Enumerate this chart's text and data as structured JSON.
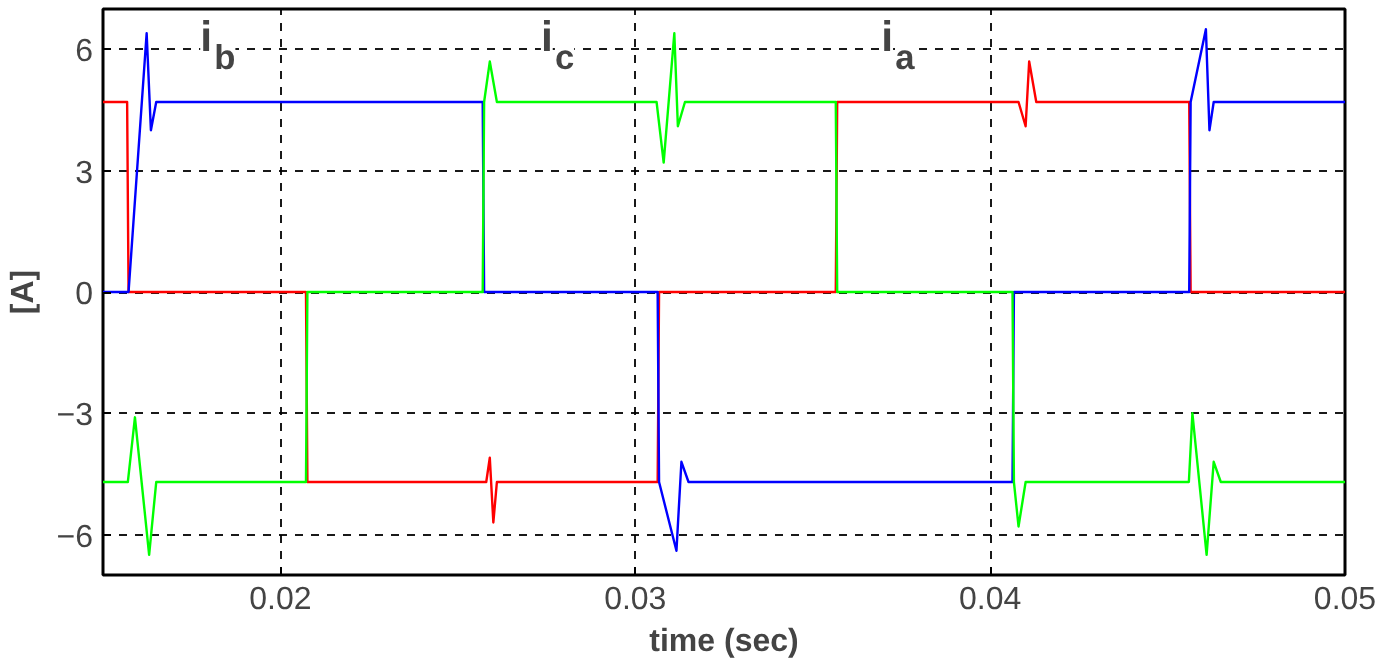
{
  "chart_data": {
    "type": "line",
    "xlabel": "time (sec)",
    "ylabel": "[A]",
    "xlim": [
      0.015,
      0.05
    ],
    "xticks": [
      0.02,
      0.03,
      0.04,
      0.05
    ],
    "ylim": [
      -7,
      7
    ],
    "yticks": [
      -6,
      -3,
      0,
      3,
      6
    ],
    "grid": true,
    "line_style": "solid",
    "marker": "none",
    "series": [
      {
        "name": "i$_{a}$",
        "color": "#ff0000",
        "x": [
          0.015,
          0.01568,
          0.01572,
          0.02072,
          0.02076,
          0.0258,
          0.0259,
          0.026,
          0.0261,
          0.0263,
          0.03063,
          0.03067,
          0.03565,
          0.03569,
          0.0408,
          0.041,
          0.0411,
          0.0413,
          0.04561,
          0.04565,
          0.05
        ],
        "values": [
          4.7,
          4.7,
          0,
          0,
          -4.7,
          -4.7,
          -4.1,
          -5.7,
          -4.7,
          -4.7,
          -4.7,
          0,
          0,
          4.7,
          4.7,
          4.1,
          5.7,
          4.7,
          4.7,
          0,
          0
        ]
      },
      {
        "name": "i$_{b}$",
        "color": "#0000ff",
        "x": [
          0.015,
          0.01568,
          0.01572,
          0.01623,
          0.01635,
          0.0165,
          0.0257,
          0.02574,
          0.03063,
          0.03067,
          0.03116,
          0.0313,
          0.0315,
          0.04063,
          0.04067,
          0.04561,
          0.04565,
          0.04608,
          0.04618,
          0.0463,
          0.05
        ],
        "values": [
          0,
          0,
          0,
          6.4,
          4.0,
          4.7,
          4.7,
          0,
          0,
          -4.7,
          -6.4,
          -4.2,
          -4.7,
          -4.7,
          0,
          0,
          4.7,
          6.5,
          4.0,
          4.7,
          4.7
        ]
      },
      {
        "name": "i$_{c}$",
        "color": "#00ff00",
        "x": [
          0.015,
          0.0157,
          0.0159,
          0.0163,
          0.0165,
          0.02072,
          0.02076,
          0.0257,
          0.02574,
          0.0259,
          0.0261,
          0.0306,
          0.0308,
          0.0311,
          0.0312,
          0.0314,
          0.03565,
          0.03569,
          0.04063,
          0.04067,
          0.0408,
          0.041,
          0.0456,
          0.0457,
          0.0461,
          0.0463,
          0.0465,
          0.05
        ],
        "values": [
          -4.7,
          -4.7,
          -3.1,
          -6.5,
          -4.7,
          -4.7,
          0,
          0,
          4.7,
          5.7,
          4.7,
          4.7,
          3.2,
          6.4,
          4.1,
          4.7,
          4.7,
          0,
          0,
          -4.7,
          -5.8,
          -4.7,
          -4.7,
          -3.0,
          -6.5,
          -4.2,
          -4.7,
          -4.7
        ]
      }
    ]
  }
}
